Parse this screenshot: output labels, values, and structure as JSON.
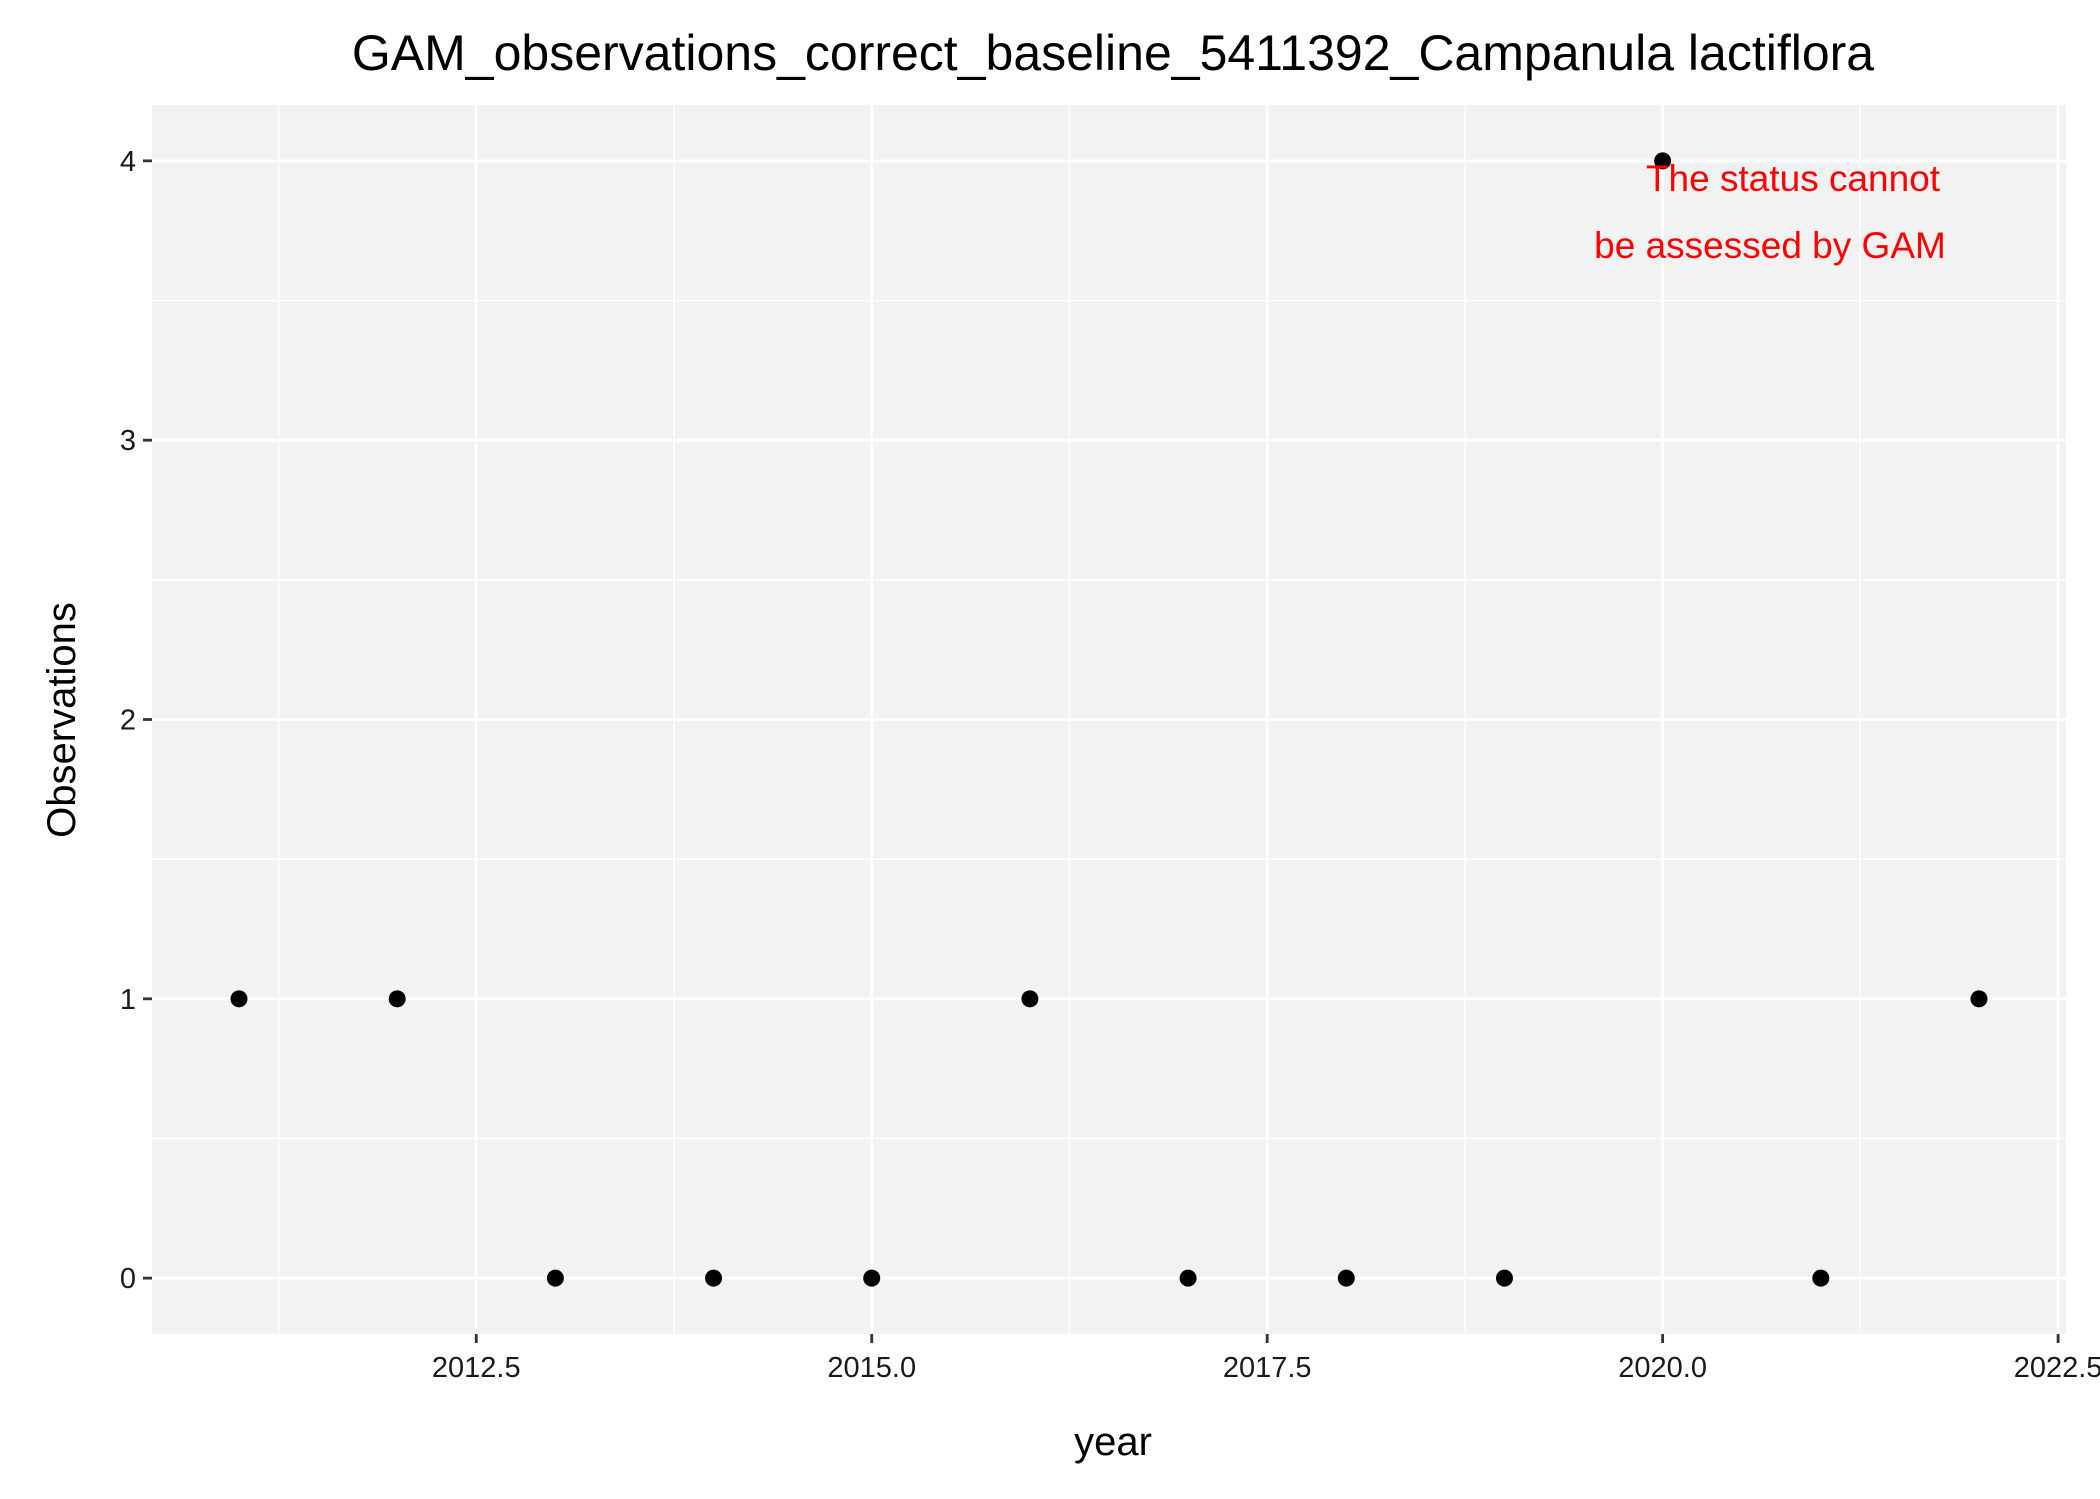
{
  "chart_data": {
    "type": "scatter",
    "title": "GAM_observations_correct_baseline_5411392_Campanula lactiflora",
    "xlabel": "year",
    "ylabel": "Observations",
    "x": [
      2011,
      2012,
      2013,
      2014,
      2015,
      2016,
      2017,
      2018,
      2019,
      2020,
      2021,
      2022
    ],
    "y": [
      1,
      1,
      0,
      0,
      0,
      1,
      0,
      0,
      0,
      4,
      0,
      1
    ],
    "xlim": [
      2010.45,
      2022.55
    ],
    "ylim": [
      -0.2,
      4.2
    ],
    "x_ticks": [
      2012.5,
      2015.0,
      2017.5,
      2020.0,
      2022.5
    ],
    "x_tick_labels": [
      "2012.5",
      "2015.0",
      "2017.5",
      "2020.0",
      "2022.5"
    ],
    "y_ticks": [
      0,
      1,
      2,
      3,
      4
    ],
    "y_tick_labels": [
      "0",
      "1",
      "2",
      "3",
      "4"
    ],
    "grid": true,
    "annotation": {
      "lines": [
        "The status cannot",
        "be assessed by GAM"
      ],
      "color": "#ff0000"
    },
    "colors": {
      "panel_background": "#f2f2f2",
      "grid_major": "#ffffff",
      "grid_minor": "#ffffff",
      "points": "#000000"
    }
  }
}
